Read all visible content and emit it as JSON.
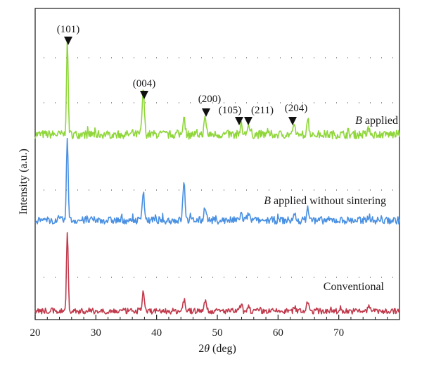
{
  "chart_data": {
    "type": "line",
    "title": "",
    "xlabel": "2θ (deg)",
    "xlabel_prefix": "2",
    "xlabel_symbol": "θ",
    "xlabel_unit": " (deg)",
    "ylabel": "Intensity (a.u.)",
    "xlim": [
      20,
      80
    ],
    "xticks": [
      20,
      30,
      40,
      50,
      60,
      70
    ],
    "grid": "dotted horizontal reference lines",
    "series": [
      {
        "name": "B applied",
        "name_italic": "B",
        "name_rest": " applied",
        "color": "#8fd63a",
        "baseline": 0.1,
        "peaks": [
          [
            25.3,
            1.0
          ],
          [
            37.8,
            0.48
          ],
          [
            44.5,
            0.2
          ],
          [
            48.0,
            0.17
          ],
          [
            53.9,
            0.1
          ],
          [
            55.1,
            0.1
          ],
          [
            62.7,
            0.08
          ],
          [
            64.9,
            0.17
          ],
          [
            75.0,
            0.07
          ]
        ]
      },
      {
        "name": "B applied without sintering",
        "name_italic": "B",
        "name_rest": " applied without sintering",
        "color": "#4a90e2",
        "baseline": 0.1,
        "peaks": [
          [
            25.3,
            1.0
          ],
          [
            37.8,
            0.36
          ],
          [
            44.5,
            0.45
          ],
          [
            48.0,
            0.18
          ],
          [
            53.9,
            0.08
          ],
          [
            55.1,
            0.08
          ],
          [
            62.7,
            0.07
          ],
          [
            64.9,
            0.15
          ],
          [
            75.0,
            0.06
          ]
        ]
      },
      {
        "name": "Conventional",
        "name_italic": "",
        "name_rest": "Conventional",
        "color": "#c0394b",
        "baseline": 0.08,
        "peaks": [
          [
            25.3,
            1.0
          ],
          [
            37.8,
            0.25
          ],
          [
            44.5,
            0.15
          ],
          [
            48.0,
            0.15
          ],
          [
            53.9,
            0.07
          ],
          [
            55.1,
            0.07
          ],
          [
            62.7,
            0.06
          ],
          [
            64.9,
            0.11
          ],
          [
            75.0,
            0.06
          ]
        ]
      }
    ],
    "peak_annotations": [
      {
        "label": "(101)",
        "x": 25.3
      },
      {
        "label": "(004)",
        "x": 37.8
      },
      {
        "label": "(200)",
        "x": 48.0
      },
      {
        "label": "(105)",
        "x": 53.9
      },
      {
        "label": "(211)",
        "x": 55.1
      },
      {
        "label": "(204)",
        "x": 62.7
      }
    ]
  }
}
